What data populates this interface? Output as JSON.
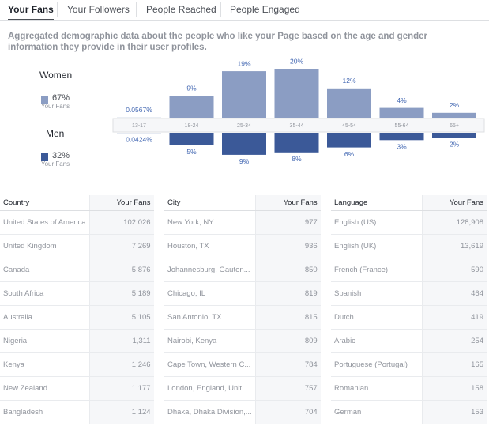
{
  "tabs": [
    "Your Fans",
    "Your Followers",
    "People Reached",
    "People Engaged"
  ],
  "description": "Aggregated demographic data about the people who like your Page based on the age and gender information they provide in their user profiles.",
  "legend": [
    {
      "share": "67%",
      "caption": "Your Fans"
    },
    {
      "share": "32%",
      "caption": "Your Fans"
    }
  ],
  "chart_data": {
    "type": "bar",
    "categories": [
      "13-17",
      "18-24",
      "25-34",
      "35-44",
      "45-54",
      "55-64",
      "65+"
    ],
    "series": [
      {
        "name": "Women",
        "color": "#8b9dc3",
        "values": [
          0.0567,
          9,
          19,
          20,
          12,
          4,
          2
        ],
        "value_labels": [
          "0.0567%",
          "9%",
          "19%",
          "20%",
          "12%",
          "4%",
          "2%"
        ]
      },
      {
        "name": "Men",
        "color": "#3b5998",
        "values": [
          0.0424,
          5,
          9,
          8,
          6,
          3,
          2
        ],
        "value_labels": [
          "0.0424%",
          "5%",
          "9%",
          "8%",
          "6%",
          "3%",
          "2%"
        ]
      }
    ]
  },
  "tables": [
    {
      "columns": [
        "Country",
        "Your Fans"
      ],
      "rows": [
        [
          "United States of America",
          "102,026"
        ],
        [
          "United Kingdom",
          "7,269"
        ],
        [
          "Canada",
          "5,876"
        ],
        [
          "South Africa",
          "5,189"
        ],
        [
          "Australia",
          "5,105"
        ],
        [
          "Nigeria",
          "1,311"
        ],
        [
          "Kenya",
          "1,246"
        ],
        [
          "New Zealand",
          "1,177"
        ],
        [
          "Bangladesh",
          "1,124"
        ]
      ]
    },
    {
      "columns": [
        "City",
        "Your Fans"
      ],
      "rows": [
        [
          "New York, NY",
          "977"
        ],
        [
          "Houston, TX",
          "936"
        ],
        [
          "Johannesburg, Gauten...",
          "850"
        ],
        [
          "Chicago, IL",
          "819"
        ],
        [
          "San Antonio, TX",
          "815"
        ],
        [
          "Nairobi, Kenya",
          "809"
        ],
        [
          "Cape Town, Western C...",
          "784"
        ],
        [
          "London, England, Unit...",
          "757"
        ],
        [
          "Dhaka, Dhaka Division,...",
          "704"
        ]
      ]
    },
    {
      "columns": [
        "Language",
        "Your Fans"
      ],
      "rows": [
        [
          "English (US)",
          "128,908"
        ],
        [
          "English (UK)",
          "13,619"
        ],
        [
          "French (France)",
          "590"
        ],
        [
          "Spanish",
          "464"
        ],
        [
          "Dutch",
          "419"
        ],
        [
          "Arabic",
          "254"
        ],
        [
          "Portuguese (Portugal)",
          "165"
        ],
        [
          "Romanian",
          "158"
        ],
        [
          "German",
          "153"
        ]
      ]
    }
  ]
}
